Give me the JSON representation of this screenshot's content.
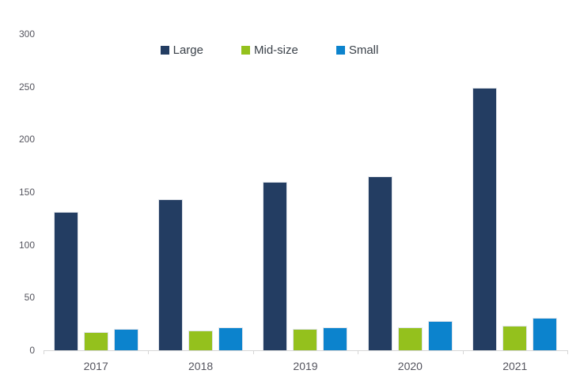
{
  "chart_data": {
    "type": "bar",
    "title": "",
    "xlabel": "",
    "ylabel": "",
    "categories": [
      "2017",
      "2018",
      "2019",
      "2020",
      "2021"
    ],
    "series": [
      {
        "name": "Large",
        "color": "#233d62",
        "values": [
          131,
          143,
          160,
          165,
          249
        ]
      },
      {
        "name": "Mid-size",
        "color": "#94c11d",
        "values": [
          17,
          19,
          20,
          22,
          23
        ]
      },
      {
        "name": "Small",
        "color": "#0c83cd",
        "values": [
          20,
          22,
          22,
          28,
          31
        ]
      }
    ],
    "ylim": [
      0,
      300
    ],
    "yticks": [
      0,
      50,
      100,
      150,
      200,
      250,
      300
    ],
    "grid": false,
    "legend_position": "top",
    "axis_line_color": "#d6d6d6",
    "tick_label_color": "#55555e",
    "legend_text_color": "#3a4149"
  }
}
